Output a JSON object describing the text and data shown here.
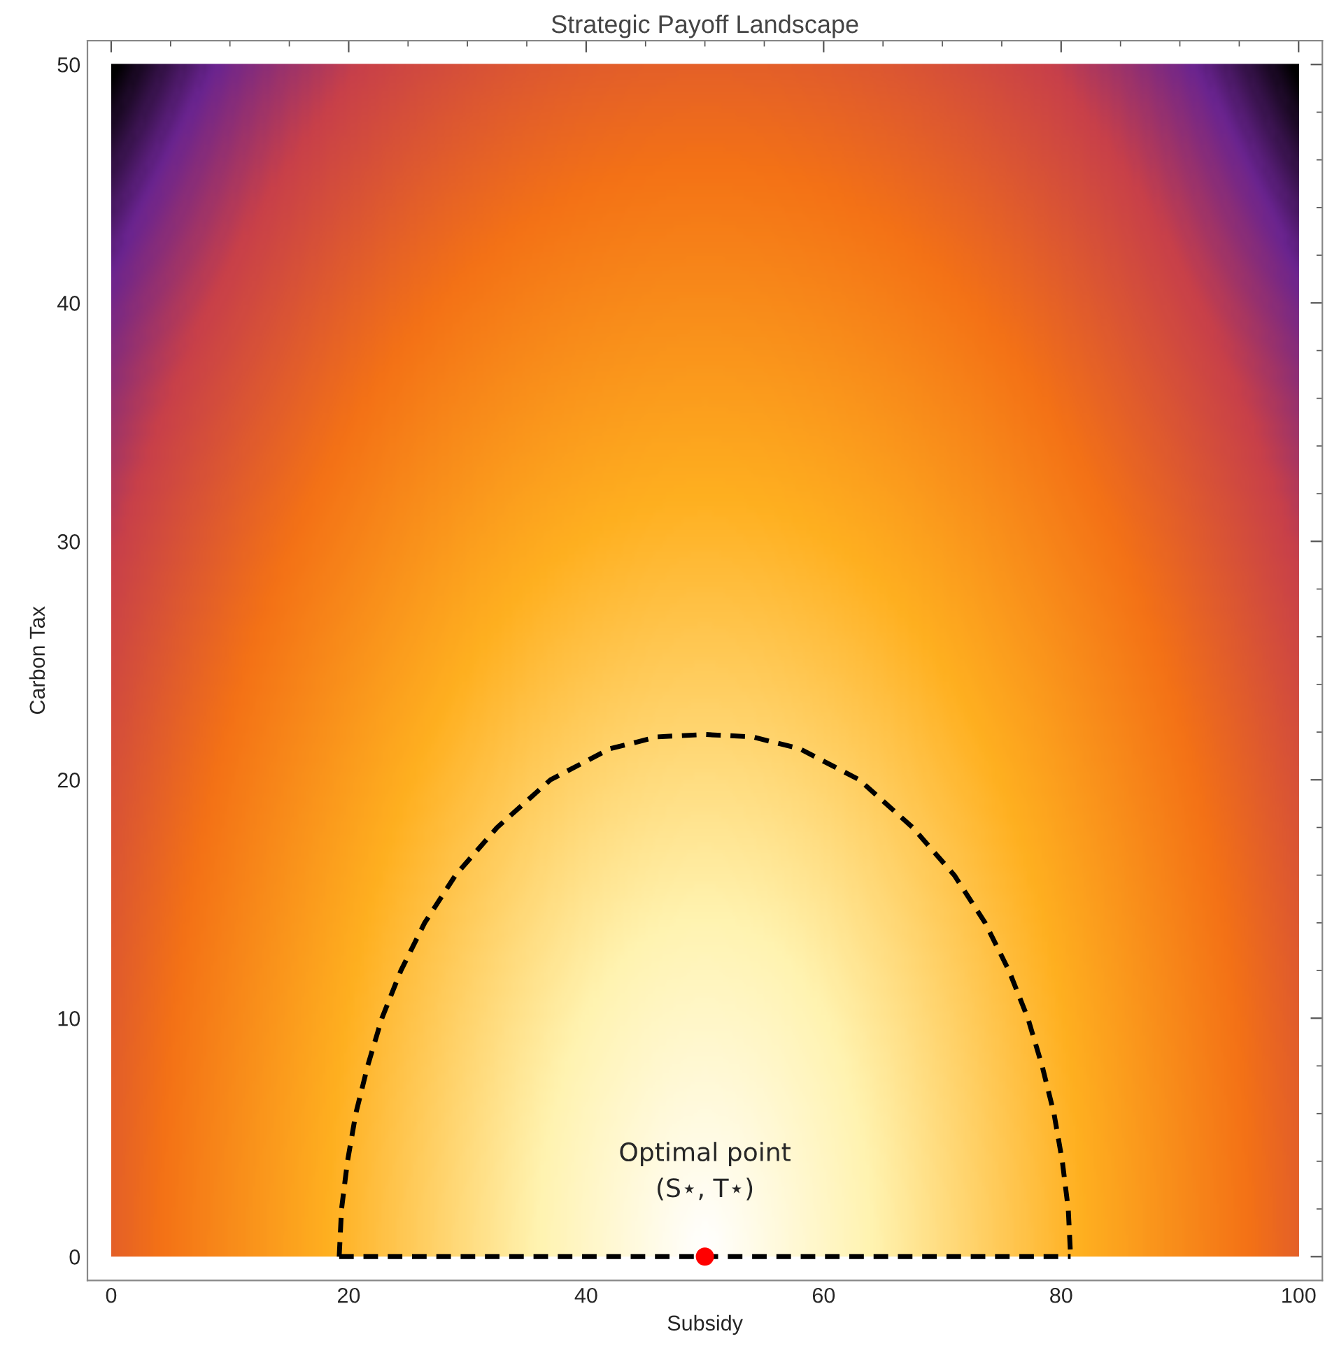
{
  "chart_data": {
    "type": "line",
    "title": "Strategic Payoff Landscape",
    "xlabel": "Subsidy",
    "ylabel": "Carbon Tax",
    "xlim": [
      -2,
      102
    ],
    "ylim": [
      -1,
      51
    ],
    "xticks": [
      0,
      20,
      40,
      60,
      80,
      100
    ],
    "yticks": [
      0,
      10,
      20,
      30,
      40,
      50
    ],
    "grid": false,
    "series": [
      {
        "type": "line",
        "color": "#000000",
        "line_style": "dashed",
        "marker": "none",
        "x": [
          19.2,
          19.4,
          19.9,
          20.6,
          21.6,
          22.8,
          24.4,
          26.4,
          29,
          32.5,
          37,
          42,
          46,
          50,
          54,
          58,
          63,
          67.5,
          71,
          73.6,
          75.6,
          77.2,
          78.4,
          79.4,
          80.1,
          80.6,
          80.8
        ],
        "values": [
          0,
          2,
          4,
          6,
          8,
          10,
          12,
          14,
          16,
          18,
          20,
          21.3,
          21.8,
          21.9,
          21.8,
          21.3,
          20,
          18,
          16,
          14,
          12,
          10,
          8,
          6,
          4,
          2,
          0
        ]
      },
      {
        "color": "#000000",
        "line_style": "dashed",
        "marker": "none",
        "x": [
          19.2,
          80.8
        ],
        "values": [
          0,
          0
        ]
      },
      {
        "type": "scatter",
        "color": "#ff0000",
        "marker": "circle",
        "x": [
          50
        ],
        "values": [
          0
        ]
      }
    ],
    "annotations": [
      {
        "text": "Optimal point\n(S⋆, T⋆)",
        "x": 50,
        "y": 0
      }
    ]
  }
}
